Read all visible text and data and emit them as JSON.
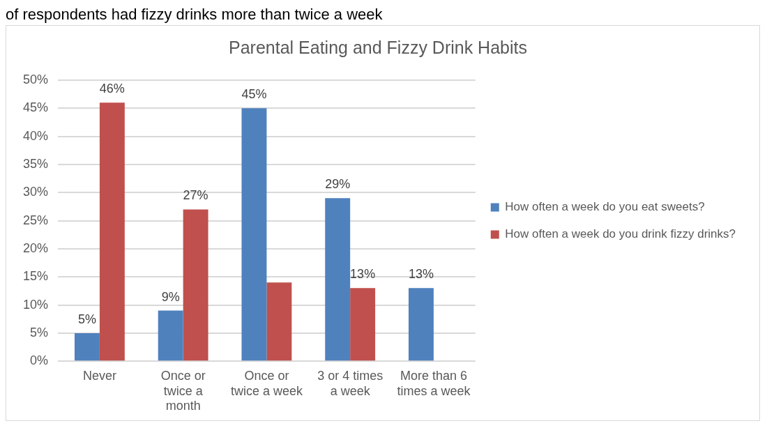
{
  "chart_data": {
    "type": "bar",
    "title": "Parental Eating and Fizzy Drink Habits",
    "annotations": [
      "of respondents had fizzy drinks more than twice a week"
    ],
    "categories": [
      "Never",
      "Once or twice a month",
      "Once or twice a week",
      "3 or 4 times a week",
      "More than 6 times a week"
    ],
    "series": [
      {
        "name": "How often a week do you eat sweets?",
        "color": "#4f81bd",
        "values": [
          5,
          9,
          45,
          29,
          13
        ],
        "value_labels": [
          "5%",
          "9%",
          "45%",
          "29%",
          "13%"
        ]
      },
      {
        "name": "How often a week do you drink fizzy drinks?",
        "color": "#c0504d",
        "values": [
          46,
          27,
          14,
          13,
          null
        ],
        "value_labels": [
          "46%",
          "27%",
          null,
          "13%",
          null
        ]
      }
    ],
    "ylim": [
      0,
      50
    ],
    "yticks": [
      {
        "value": 0,
        "label": "0%"
      },
      {
        "value": 5,
        "label": "5%"
      },
      {
        "value": 10,
        "label": "10%"
      },
      {
        "value": 15,
        "label": "15%"
      },
      {
        "value": 20,
        "label": "20%"
      },
      {
        "value": 25,
        "label": "25%"
      },
      {
        "value": 30,
        "label": "30%"
      },
      {
        "value": 35,
        "label": "35%"
      },
      {
        "value": 40,
        "label": "40%"
      },
      {
        "value": 45,
        "label": "45%"
      },
      {
        "value": 50,
        "label": "50%"
      }
    ],
    "grid": "y",
    "legend": "right"
  }
}
